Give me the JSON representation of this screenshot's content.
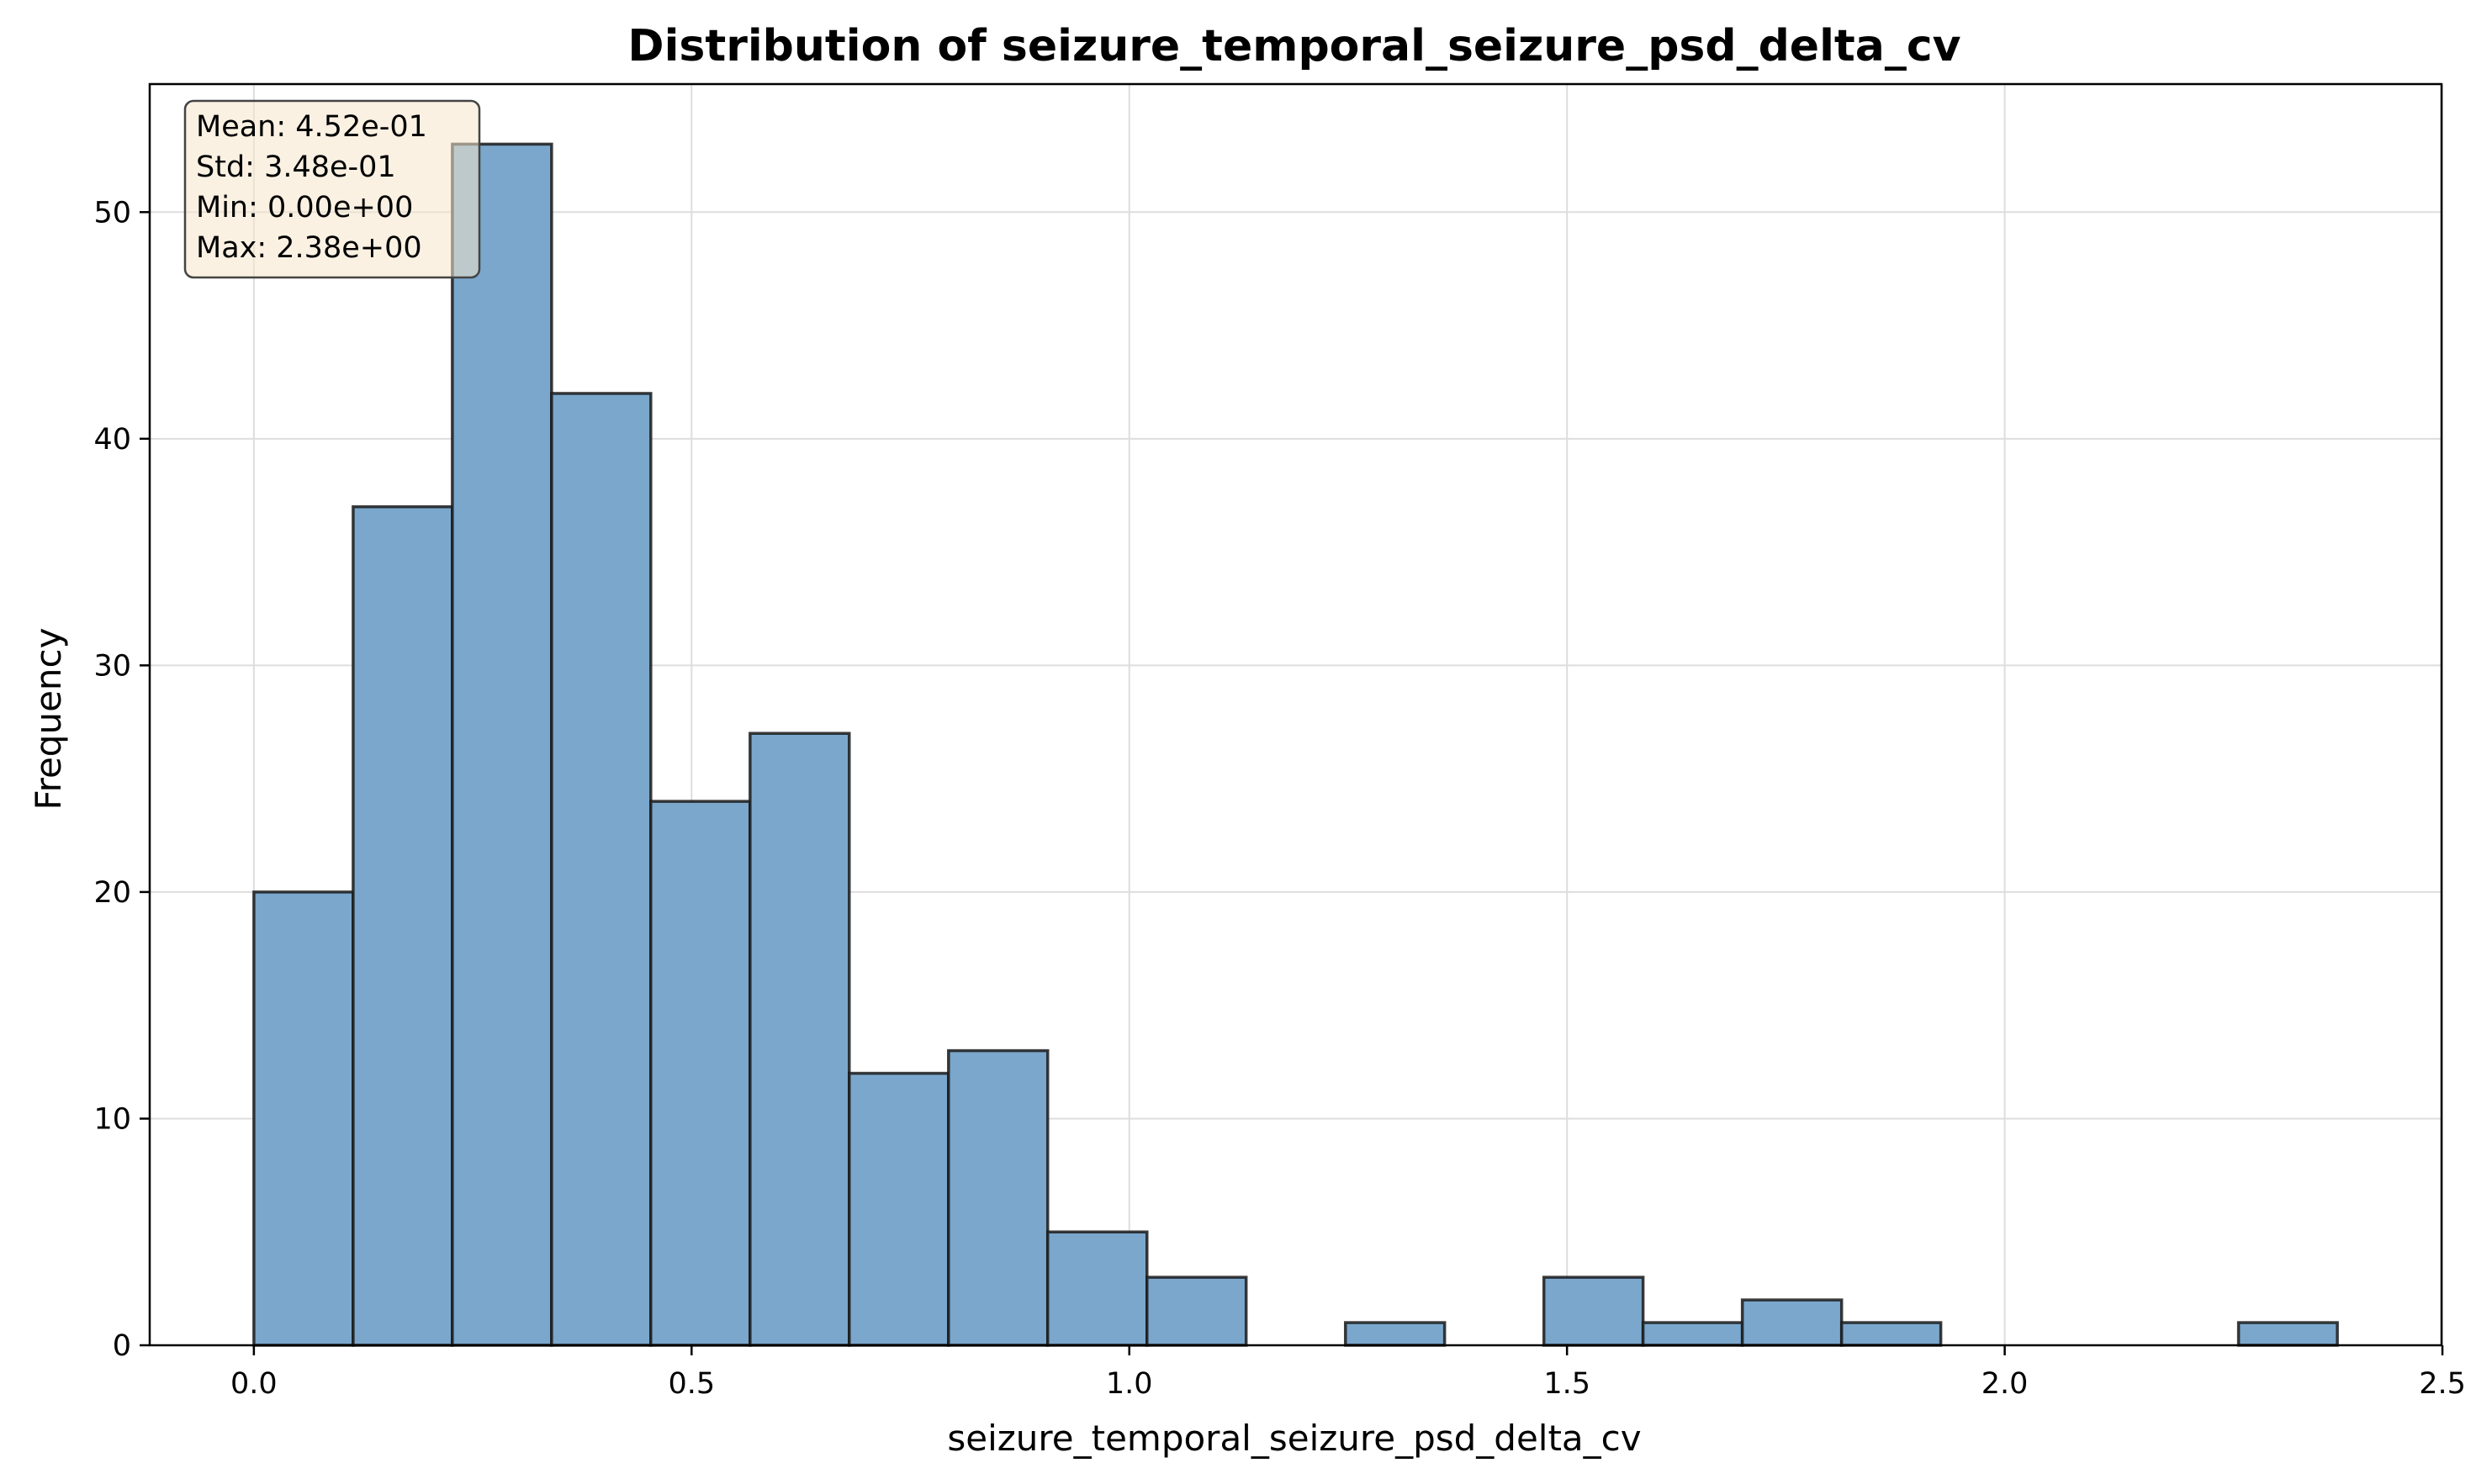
{
  "chart_data": {
    "type": "bar",
    "title": "Distribution of seizure_temporal_seizure_psd_delta_cv",
    "xlabel": "seizure_temporal_seizure_psd_delta_cv",
    "ylabel": "Frequency",
    "xlim": [
      -0.119,
      2.499
    ],
    "ylim": [
      0,
      55.65
    ],
    "xticks": [
      0.0,
      0.5,
      1.0,
      1.5,
      2.0,
      2.5
    ],
    "xtick_labels": [
      "0.0",
      "0.5",
      "1.0",
      "1.5",
      "2.0",
      "2.5"
    ],
    "yticks": [
      0,
      10,
      20,
      30,
      40,
      50
    ],
    "ytick_labels": [
      "0",
      "10",
      "20",
      "30",
      "40",
      "50"
    ],
    "grid": true,
    "bin_edges": [
      0.0,
      0.1134,
      0.2267,
      0.3401,
      0.4534,
      0.5668,
      0.6801,
      0.7935,
      0.9068,
      1.0202,
      1.1335,
      1.2469,
      1.3602,
      1.4736,
      1.5869,
      1.7003,
      1.8137,
      1.927,
      2.0404,
      2.1537,
      2.2671,
      2.38
    ],
    "values": [
      20,
      37,
      53,
      42,
      24,
      27,
      12,
      13,
      5,
      3,
      0,
      1,
      0,
      3,
      1,
      2,
      1,
      0,
      0,
      0,
      1
    ],
    "bar_color": "#7ba7cc",
    "edge_color": "#1a1a1a",
    "stats_box": {
      "lines": [
        "Mean: 4.52e-01",
        "Std: 3.48e-01",
        "Min: 0.00e+00",
        "Max: 2.38e+00"
      ],
      "background": "#f5e6cc",
      "position": "top-left"
    }
  }
}
